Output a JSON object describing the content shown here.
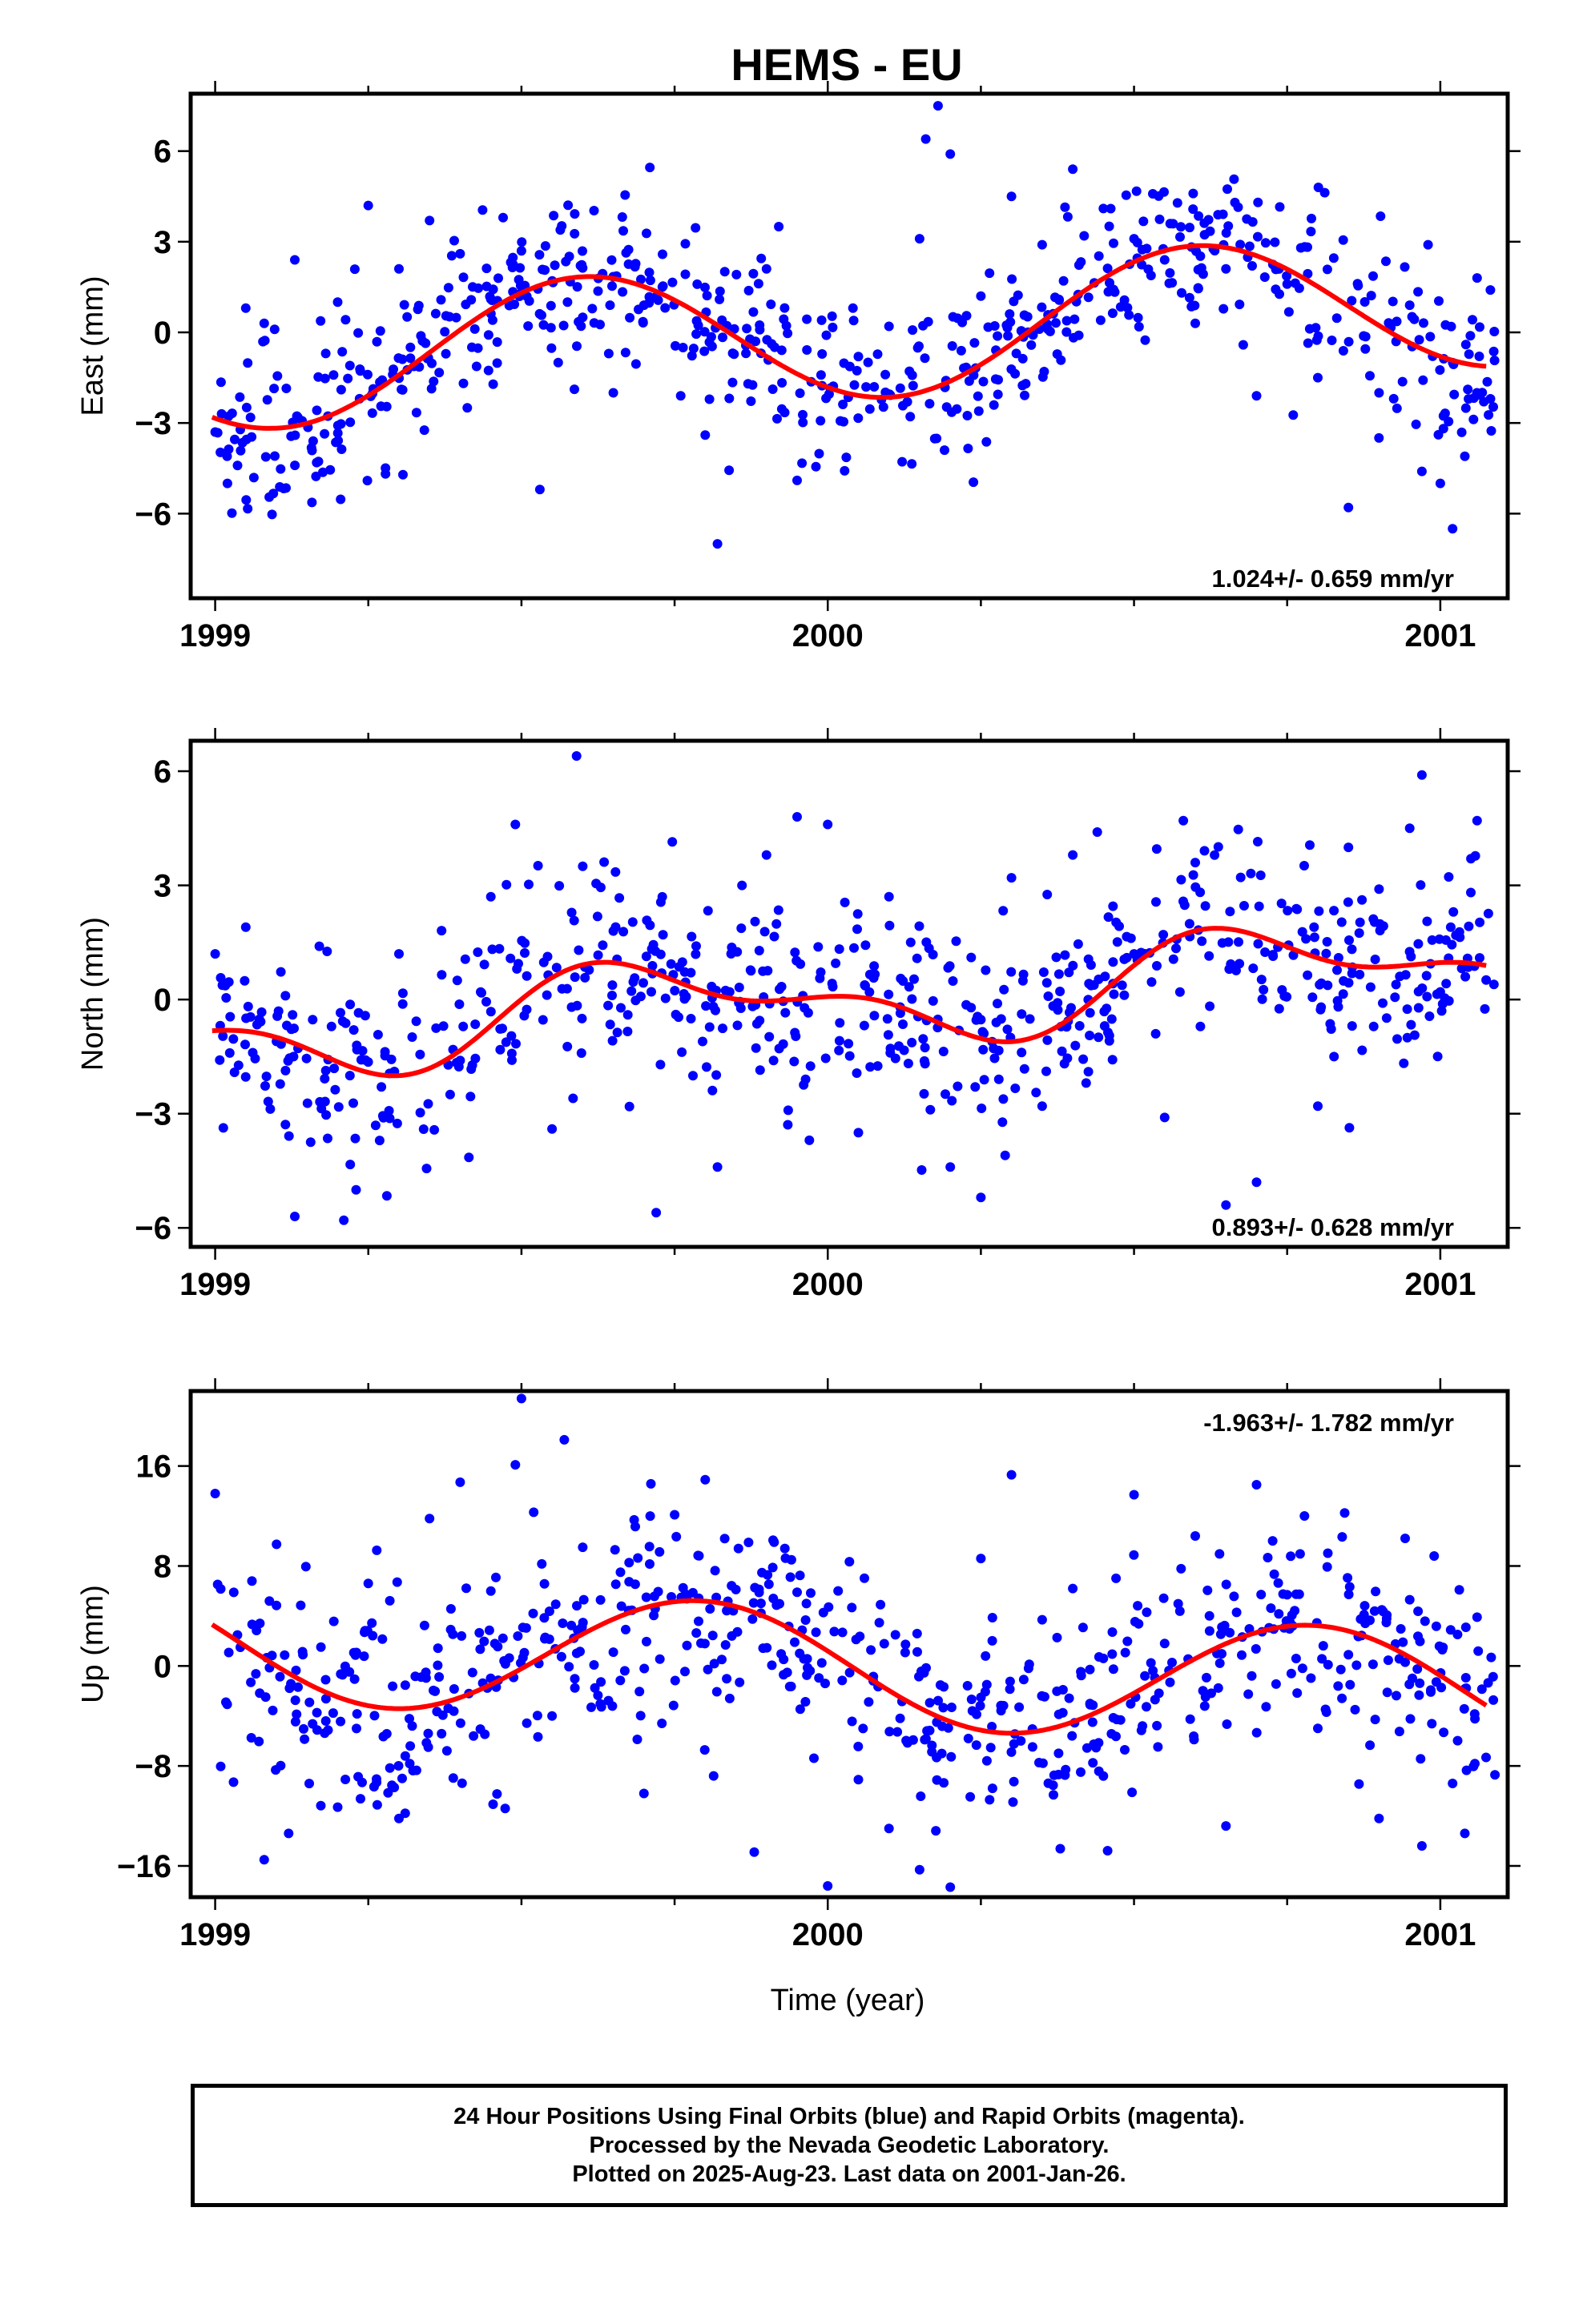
{
  "title": "HEMS - EU",
  "x_axis_label": "Time (year)",
  "footer": {
    "lines": [
      "24 Hour Positions Using Final Orbits (blue) and Rapid Orbits (magenta).",
      "Processed by the Nevada Geodetic Laboratory.",
      "Plotted on 2025-Aug-23. Last data on 2001-Jan-26."
    ]
  },
  "colors": {
    "points": "#0000ff",
    "model": "#ff0000",
    "frame": "#000000"
  },
  "chart_data": [
    {
      "type": "scatter",
      "component": "east",
      "ylabel": "East (mm)",
      "rate_label": "1.024+/- 0.659 mm/yr",
      "rate_label_position": "bottom-right",
      "xlim": [
        1998.96,
        2001.11
      ],
      "ylim": [
        -8.8,
        7.9
      ],
      "x_ticks": [
        1999,
        2000,
        2001
      ],
      "x_tick_labels": [
        "1999",
        "2000",
        "2001"
      ],
      "y_ticks": [
        -6,
        -3,
        0,
        3,
        6
      ],
      "y_tick_labels": [
        "−6",
        "−3",
        "0",
        "3",
        "6"
      ],
      "model": {
        "intercept": 0,
        "rate": 1.024,
        "ref_year": 2000.0,
        "annual_amp": 2.25,
        "annual_phase_year": 1999.35,
        "semi_amp": 0.0,
        "semi_phase_year": 0.0
      },
      "scatter": 1.35,
      "n_points": 650,
      "series": [
        {
          "name": "Final Orbits",
          "points": [
            [
              1999.0,
              -3.3
            ],
            [
              1999.02,
              -5.0
            ],
            [
              1999.05,
              0.8
            ],
            [
              1999.08,
              0.3
            ],
            [
              1999.13,
              2.4
            ],
            [
              1999.16,
              -3.6
            ],
            [
              1999.2,
              1.0
            ],
            [
              1999.22,
              -1.1
            ],
            [
              1999.25,
              4.2
            ],
            [
              1999.3,
              2.1
            ],
            [
              1999.35,
              3.7
            ],
            [
              1999.4,
              2.6
            ],
            [
              1999.45,
              1.1
            ],
            [
              1999.47,
              3.8
            ],
            [
              1999.5,
              2.7
            ],
            [
              1999.53,
              -5.2
            ],
            [
              1999.56,
              -1.0
            ],
            [
              1999.6,
              0.5
            ],
            [
              1999.65,
              -2.0
            ],
            [
              1999.7,
              0.9
            ],
            [
              1999.73,
              1.5
            ],
            [
              1999.76,
              -2.1
            ],
            [
              1999.8,
              -3.4
            ],
            [
              1999.82,
              -7.0
            ],
            [
              1999.87,
              -1.7
            ],
            [
              1999.9,
              2.1
            ],
            [
              1999.92,
              3.5
            ],
            [
              1999.95,
              -4.9
            ],
            [
              1999.99,
              0.4
            ],
            [
              2000.05,
              -0.8
            ],
            [
              2000.1,
              0.2
            ],
            [
              2000.13,
              -2.3
            ],
            [
              2000.15,
              3.1
            ],
            [
              2000.16,
              6.4
            ],
            [
              2000.18,
              7.5
            ],
            [
              2000.2,
              5.9
            ],
            [
              2000.25,
              1.2
            ],
            [
              2000.3,
              4.5
            ],
            [
              2000.35,
              2.9
            ],
            [
              2000.4,
              5.4
            ],
            [
              2000.45,
              4.1
            ],
            [
              2000.5,
              3.1
            ],
            [
              2000.55,
              2.4
            ],
            [
              2000.6,
              0.3
            ],
            [
              2000.65,
              2.1
            ],
            [
              2000.7,
              -2.1
            ],
            [
              2000.75,
              1.6
            ],
            [
              2000.8,
              -1.5
            ],
            [
              2000.85,
              -5.8
            ],
            [
              2000.9,
              -2.0
            ],
            [
              2000.95,
              0.9
            ],
            [
              2000.97,
              -4.6
            ],
            [
              2000.98,
              2.9
            ],
            [
              2001.0,
              -5.0
            ],
            [
              2001.02,
              -6.5
            ],
            [
              2001.04,
              -4.1
            ],
            [
              2001.06,
              1.8
            ]
          ]
        }
      ]
    },
    {
      "type": "scatter",
      "component": "north",
      "ylabel": "North (mm)",
      "rate_label": "0.893+/- 0.628 mm/yr",
      "rate_label_position": "bottom-right",
      "xlim": [
        1998.96,
        2001.11
      ],
      "ylim": [
        -6.5,
        6.8
      ],
      "x_ticks": [
        1999,
        2000,
        2001
      ],
      "x_tick_labels": [
        "1999",
        "2000",
        "2001"
      ],
      "y_ticks": [
        -6,
        -3,
        0,
        3,
        6
      ],
      "y_tick_labels": [
        "−6",
        "−3",
        "0",
        "3",
        "6"
      ],
      "model": {
        "intercept": 0,
        "rate": 0.893,
        "ref_year": 2000.0,
        "annual_amp": 1.0,
        "annual_phase_year": 1999.47,
        "semi_amp": 0.55,
        "semi_phase_year": 1999.46
      },
      "scatter": 1.35,
      "n_points": 650,
      "series": [
        {
          "name": "Final Orbits",
          "points": [
            [
              1999.0,
              1.2
            ],
            [
              1999.05,
              1.9
            ],
            [
              1999.1,
              -1.1
            ],
            [
              1999.13,
              -5.7
            ],
            [
              1999.17,
              1.4
            ],
            [
              1999.21,
              -5.8
            ],
            [
              1999.23,
              -5.0
            ],
            [
              1999.3,
              1.2
            ],
            [
              1999.4,
              -1.6
            ],
            [
              1999.45,
              2.7
            ],
            [
              1999.49,
              4.6
            ],
            [
              1999.55,
              -3.4
            ],
            [
              1999.59,
              6.4
            ],
            [
              1999.6,
              3.5
            ],
            [
              1999.65,
              1.8
            ],
            [
              1999.72,
              -5.6
            ],
            [
              1999.78,
              -2.0
            ],
            [
              1999.82,
              -4.4
            ],
            [
              1999.86,
              3.0
            ],
            [
              1999.9,
              3.8
            ],
            [
              1999.95,
              4.8
            ],
            [
              1999.97,
              -3.7
            ],
            [
              2000.0,
              4.6
            ],
            [
              2000.05,
              -3.5
            ],
            [
              2000.1,
              2.7
            ],
            [
              2000.2,
              -4.4
            ],
            [
              2000.25,
              -5.2
            ],
            [
              2000.3,
              3.2
            ],
            [
              2000.35,
              -2.8
            ],
            [
              2000.4,
              3.8
            ],
            [
              2000.44,
              4.4
            ],
            [
              2000.5,
              1.2
            ],
            [
              2000.55,
              -3.1
            ],
            [
              2000.6,
              3.6
            ],
            [
              2000.65,
              -5.4
            ],
            [
              2000.7,
              -4.8
            ],
            [
              2000.8,
              -2.8
            ],
            [
              2000.85,
              4.0
            ],
            [
              2000.9,
              2.9
            ],
            [
              2000.95,
              4.5
            ],
            [
              2000.97,
              5.9
            ],
            [
              2001.0,
              0.2
            ],
            [
              2001.05,
              3.7
            ],
            [
              2001.06,
              4.7
            ]
          ]
        }
      ]
    },
    {
      "type": "scatter",
      "component": "up",
      "ylabel": "Up (mm)",
      "rate_label": "-1.963+/- 1.782 mm/yr",
      "rate_label_position": "top-right",
      "xlim": [
        1998.96,
        2001.11
      ],
      "ylim": [
        -18.5,
        22
      ],
      "x_ticks": [
        1999,
        2000,
        2001
      ],
      "x_tick_labels": [
        "1999",
        "2000",
        "2001"
      ],
      "y_ticks": [
        -16,
        -8,
        0,
        8,
        16
      ],
      "y_tick_labels": [
        "−16",
        "−8",
        "0",
        "8",
        "16"
      ],
      "model": {
        "intercept": 0,
        "rate": -1.963,
        "ref_year": 2000.0,
        "annual_amp": 4.8,
        "annual_phase_year": 1999.54,
        "semi_amp": 0.0,
        "semi_phase_year": 0.0
      },
      "scatter": 4.2,
      "n_points": 650,
      "series": [
        {
          "name": "Final Orbits",
          "points": [
            [
              1999.0,
              13.8
            ],
            [
              1999.03,
              -9.3
            ],
            [
              1999.06,
              6.8
            ],
            [
              1999.08,
              -15.5
            ],
            [
              1999.12,
              -13.4
            ],
            [
              1999.2,
              -11.3
            ],
            [
              1999.25,
              6.6
            ],
            [
              1999.3,
              -12.2
            ],
            [
              1999.35,
              11.8
            ],
            [
              1999.4,
              14.7
            ],
            [
              1999.45,
              6.0
            ],
            [
              1999.49,
              16.1
            ],
            [
              1999.5,
              21.4
            ],
            [
              1999.52,
              12.3
            ],
            [
              1999.55,
              -4.0
            ],
            [
              1999.57,
              18.1
            ],
            [
              1999.6,
              9.5
            ],
            [
              1999.65,
              1.1
            ],
            [
              1999.7,
              -10.2
            ],
            [
              1999.75,
              12.1
            ],
            [
              1999.8,
              14.9
            ],
            [
              1999.84,
              -2.6
            ],
            [
              1999.88,
              -14.9
            ],
            [
              1999.93,
              9.4
            ],
            [
              1999.95,
              5.9
            ],
            [
              2000.0,
              -17.6
            ],
            [
              2000.05,
              -9.1
            ],
            [
              2000.1,
              -13.0
            ],
            [
              2000.15,
              -16.3
            ],
            [
              2000.2,
              -17.7
            ],
            [
              2000.25,
              8.6
            ],
            [
              2000.3,
              15.3
            ],
            [
              2000.35,
              3.7
            ],
            [
              2000.4,
              6.2
            ],
            [
              2000.45,
              0.6
            ],
            [
              2000.5,
              13.7
            ],
            [
              2000.55,
              1.8
            ],
            [
              2000.6,
              10.4
            ],
            [
              2000.65,
              -12.8
            ],
            [
              2000.7,
              14.5
            ],
            [
              2000.75,
              5.7
            ],
            [
              2000.8,
              -5.0
            ],
            [
              2000.85,
              0.9
            ],
            [
              2000.9,
              -12.2
            ],
            [
              2000.95,
              5.3
            ],
            [
              2000.97,
              -14.4
            ],
            [
              2000.99,
              8.8
            ],
            [
              2001.02,
              -9.4
            ],
            [
              2001.04,
              -13.4
            ],
            [
              2001.06,
              3.9
            ]
          ]
        }
      ]
    }
  ]
}
